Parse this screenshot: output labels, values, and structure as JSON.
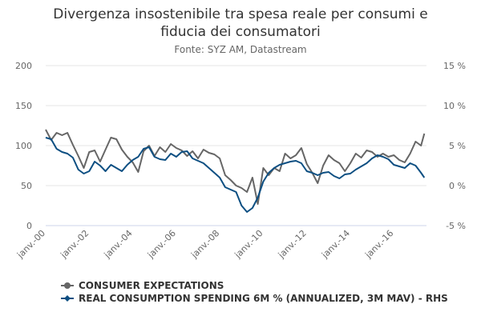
{
  "chart_data": {
    "type": "line",
    "title_lines": [
      "Divergenza insostenibile tra spesa reale per consumi e",
      "fiducia dei consumatori"
    ],
    "subtitle": "Fonte: SYZ AM, Datastream",
    "left_axis": {
      "ticks": [
        "0",
        "50",
        "100",
        "150",
        "200"
      ],
      "range": [
        0,
        200
      ]
    },
    "right_axis": {
      "ticks": [
        "-5 %",
        "0 %",
        "5 %",
        "10 %",
        "15 %"
      ],
      "range": [
        -5,
        15
      ]
    },
    "x_ticks": [
      "janv.-00",
      "janv.-02",
      "janv.-04",
      "janv.-06",
      "janv.-08",
      "janv.-10",
      "janv.-12",
      "janv.-14",
      "janv.-16"
    ],
    "x_range": [
      2000.0,
      2017.5
    ],
    "series": [
      {
        "name": "CONSUMER EXPECTATIONS",
        "axis": "left",
        "color": "#666666",
        "marker": "circle",
        "points": [
          [
            2000.0,
            120
          ],
          [
            2000.25,
            107
          ],
          [
            2000.5,
            116
          ],
          [
            2000.75,
            113
          ],
          [
            2001.0,
            116
          ],
          [
            2001.25,
            101
          ],
          [
            2001.5,
            87
          ],
          [
            2001.75,
            72
          ],
          [
            2002.0,
            92
          ],
          [
            2002.25,
            94
          ],
          [
            2002.5,
            80
          ],
          [
            2002.75,
            95
          ],
          [
            2003.0,
            110
          ],
          [
            2003.25,
            108
          ],
          [
            2003.5,
            95
          ],
          [
            2003.75,
            86
          ],
          [
            2004.0,
            79
          ],
          [
            2004.25,
            67
          ],
          [
            2004.5,
            93
          ],
          [
            2004.75,
            100
          ],
          [
            2005.0,
            87
          ],
          [
            2005.25,
            98
          ],
          [
            2005.5,
            92
          ],
          [
            2005.75,
            102
          ],
          [
            2006.0,
            97
          ],
          [
            2006.25,
            94
          ],
          [
            2006.5,
            87
          ],
          [
            2006.75,
            93
          ],
          [
            2007.0,
            84
          ],
          [
            2007.25,
            95
          ],
          [
            2007.5,
            91
          ],
          [
            2007.75,
            89
          ],
          [
            2008.0,
            84
          ],
          [
            2008.25,
            63
          ],
          [
            2008.5,
            57
          ],
          [
            2008.75,
            50
          ],
          [
            2009.0,
            47
          ],
          [
            2009.25,
            42
          ],
          [
            2009.5,
            60
          ],
          [
            2009.75,
            27
          ],
          [
            2010.0,
            72
          ],
          [
            2010.25,
            63
          ],
          [
            2010.5,
            72
          ],
          [
            2010.75,
            68
          ],
          [
            2011.0,
            90
          ],
          [
            2011.25,
            84
          ],
          [
            2011.5,
            88
          ],
          [
            2011.75,
            97
          ],
          [
            2012.0,
            77
          ],
          [
            2012.25,
            66
          ],
          [
            2012.5,
            53
          ],
          [
            2012.75,
            75
          ],
          [
            2013.0,
            88
          ],
          [
            2013.25,
            82
          ],
          [
            2013.5,
            78
          ],
          [
            2013.75,
            68
          ],
          [
            2014.0,
            78
          ],
          [
            2014.25,
            90
          ],
          [
            2014.5,
            85
          ],
          [
            2014.75,
            94
          ],
          [
            2015.0,
            92
          ],
          [
            2015.25,
            86
          ],
          [
            2015.5,
            90
          ],
          [
            2015.75,
            86
          ],
          [
            2016.0,
            88
          ],
          [
            2016.25,
            82
          ],
          [
            2016.5,
            79
          ],
          [
            2016.75,
            90
          ],
          [
            2017.0,
            105
          ],
          [
            2017.25,
            100
          ],
          [
            2017.4,
            115
          ]
        ]
      },
      {
        "name": "REAL CONSUMPTION SPENDING 6M % (ANNUALIZED, 3M MAV) - RHS",
        "axis": "right",
        "color": "#0d4f82",
        "marker": "diamond",
        "points": [
          [
            2000.0,
            6.0
          ],
          [
            2000.25,
            5.8
          ],
          [
            2000.5,
            4.6
          ],
          [
            2000.75,
            4.2
          ],
          [
            2001.0,
            4.0
          ],
          [
            2001.25,
            3.5
          ],
          [
            2001.5,
            2.0
          ],
          [
            2001.75,
            1.5
          ],
          [
            2002.0,
            1.8
          ],
          [
            2002.25,
            3.0
          ],
          [
            2002.5,
            2.5
          ],
          [
            2002.75,
            1.8
          ],
          [
            2003.0,
            2.6
          ],
          [
            2003.25,
            2.2
          ],
          [
            2003.5,
            1.8
          ],
          [
            2003.75,
            2.6
          ],
          [
            2004.0,
            3.2
          ],
          [
            2004.25,
            3.6
          ],
          [
            2004.5,
            4.6
          ],
          [
            2004.75,
            4.8
          ],
          [
            2005.0,
            3.6
          ],
          [
            2005.25,
            3.3
          ],
          [
            2005.5,
            3.2
          ],
          [
            2005.75,
            4.0
          ],
          [
            2006.0,
            3.6
          ],
          [
            2006.25,
            4.2
          ],
          [
            2006.5,
            4.3
          ],
          [
            2006.75,
            3.4
          ],
          [
            2007.0,
            3.1
          ],
          [
            2007.25,
            2.8
          ],
          [
            2007.5,
            2.2
          ],
          [
            2007.75,
            1.6
          ],
          [
            2008.0,
            1.0
          ],
          [
            2008.25,
            -0.2
          ],
          [
            2008.5,
            -0.5
          ],
          [
            2008.75,
            -0.8
          ],
          [
            2009.0,
            -2.5
          ],
          [
            2009.25,
            -3.3
          ],
          [
            2009.5,
            -2.8
          ],
          [
            2009.75,
            -1.5
          ],
          [
            2010.0,
            0.5
          ],
          [
            2010.25,
            1.6
          ],
          [
            2010.5,
            2.2
          ],
          [
            2010.75,
            2.6
          ],
          [
            2011.0,
            2.8
          ],
          [
            2011.25,
            3.0
          ],
          [
            2011.5,
            3.1
          ],
          [
            2011.75,
            2.8
          ],
          [
            2012.0,
            1.8
          ],
          [
            2012.25,
            1.6
          ],
          [
            2012.5,
            1.3
          ],
          [
            2012.75,
            1.6
          ],
          [
            2013.0,
            1.7
          ],
          [
            2013.25,
            1.2
          ],
          [
            2013.5,
            0.9
          ],
          [
            2013.75,
            1.4
          ],
          [
            2014.0,
            1.5
          ],
          [
            2014.25,
            2.0
          ],
          [
            2014.5,
            2.4
          ],
          [
            2014.75,
            2.8
          ],
          [
            2015.0,
            3.4
          ],
          [
            2015.25,
            3.8
          ],
          [
            2015.5,
            3.6
          ],
          [
            2015.75,
            3.3
          ],
          [
            2016.0,
            2.6
          ],
          [
            2016.25,
            2.4
          ],
          [
            2016.5,
            2.2
          ],
          [
            2016.75,
            2.8
          ],
          [
            2017.0,
            2.5
          ],
          [
            2017.25,
            1.6
          ],
          [
            2017.4,
            1.0
          ]
        ]
      }
    ]
  }
}
